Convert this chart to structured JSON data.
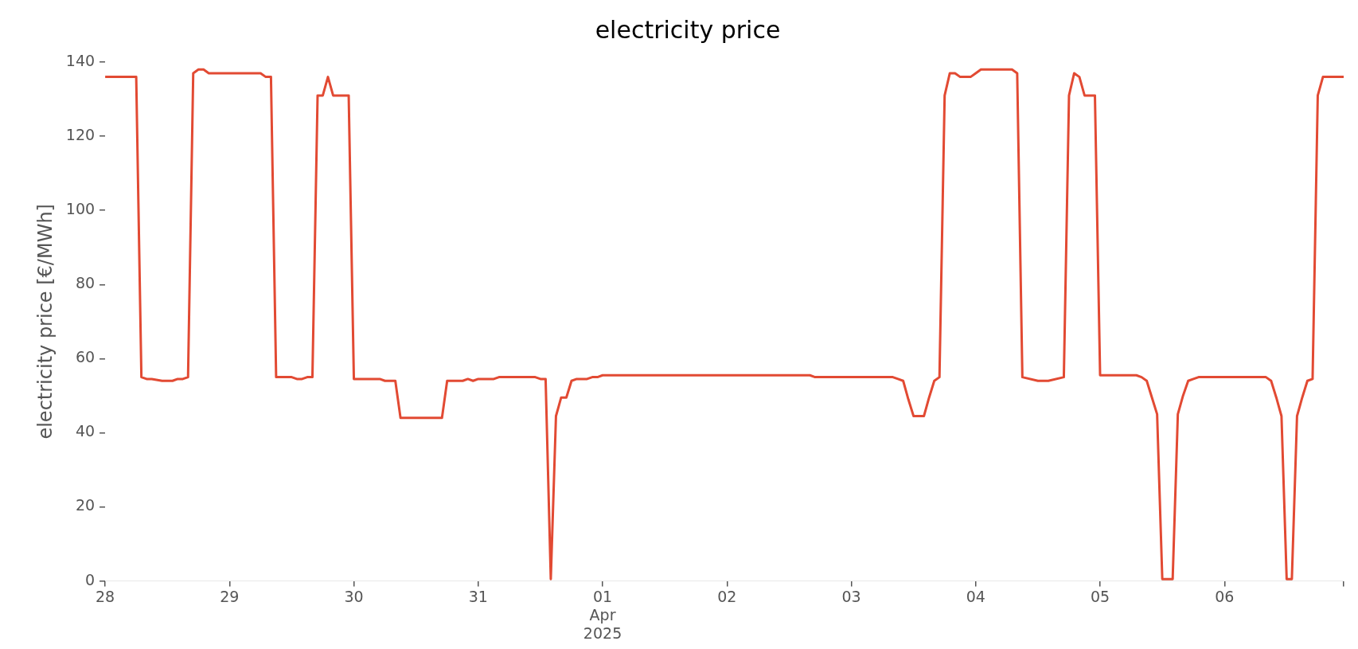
{
  "chart_data": {
    "type": "line",
    "title": "electricity price",
    "ylabel": "electricity price [€/MWh]",
    "xlim": [
      "2025-03-28T00:00",
      "2025-04-06T23:00"
    ],
    "xticks": [
      {
        "value": "2025-03-28",
        "label": "28"
      },
      {
        "value": "2025-03-29",
        "label": "29"
      },
      {
        "value": "2025-03-30",
        "label": "30"
      },
      {
        "value": "2025-03-31",
        "label": "31"
      },
      {
        "value": "2025-04-01",
        "label": "01\nApr\n2025"
      },
      {
        "value": "2025-04-02",
        "label": "02"
      },
      {
        "value": "2025-04-03",
        "label": "03"
      },
      {
        "value": "2025-04-04",
        "label": "04"
      },
      {
        "value": "2025-04-05",
        "label": "05"
      },
      {
        "value": "2025-04-06",
        "label": "06"
      },
      {
        "value": "2025-04-06T23:00",
        "label": null
      }
    ],
    "ylim": [
      0,
      140
    ],
    "yticks": [
      0,
      20,
      40,
      60,
      80,
      100,
      120,
      140
    ],
    "series": [
      {
        "color": "#e24a33",
        "x": [
          "2025-03-28T00:00",
          "2025-03-28T06:00",
          "2025-03-28T07:00",
          "2025-03-28T08:00",
          "2025-03-28T09:00",
          "2025-03-28T11:00",
          "2025-03-28T13:00",
          "2025-03-28T14:00",
          "2025-03-28T15:00",
          "2025-03-28T16:00",
          "2025-03-28T17:00",
          "2025-03-28T18:00",
          "2025-03-28T19:00",
          "2025-03-28T20:00",
          "2025-03-29T06:00",
          "2025-03-29T07:00",
          "2025-03-29T08:00",
          "2025-03-29T09:00",
          "2025-03-29T12:00",
          "2025-03-29T13:00",
          "2025-03-29T14:00",
          "2025-03-29T15:00",
          "2025-03-29T16:00",
          "2025-03-29T17:00",
          "2025-03-29T18:00",
          "2025-03-29T19:00",
          "2025-03-29T20:00",
          "2025-03-29T23:00",
          "2025-03-30T00:00",
          "2025-03-30T05:00",
          "2025-03-30T06:00",
          "2025-03-30T08:00",
          "2025-03-30T09:00",
          "2025-03-30T17:00",
          "2025-03-30T18:00",
          "2025-03-30T21:00",
          "2025-03-30T22:00",
          "2025-03-30T23:00",
          "2025-03-31T00:00",
          "2025-03-31T03:00",
          "2025-03-31T04:00",
          "2025-03-31T11:00",
          "2025-03-31T12:00",
          "2025-03-31T13:00",
          "2025-03-31T14:00",
          "2025-03-31T15:00",
          "2025-03-31T16:00",
          "2025-03-31T17:00",
          "2025-03-31T18:00",
          "2025-03-31T19:00",
          "2025-03-31T21:00",
          "2025-03-31T22:00",
          "2025-03-31T23:00",
          "2025-04-01T00:00",
          "2025-04-02T16:00",
          "2025-04-02T17:00",
          "2025-04-03T08:00",
          "2025-04-03T09:00",
          "2025-04-03T10:00",
          "2025-04-03T11:00",
          "2025-04-03T12:00",
          "2025-04-03T14:00",
          "2025-04-03T15:00",
          "2025-04-03T16:00",
          "2025-04-03T17:00",
          "2025-04-03T18:00",
          "2025-04-03T19:00",
          "2025-04-03T20:00",
          "2025-04-03T21:00",
          "2025-04-03T23:00",
          "2025-04-04T00:00",
          "2025-04-04T01:00",
          "2025-04-04T07:00",
          "2025-04-04T08:00",
          "2025-04-04T09:00",
          "2025-04-04T12:00",
          "2025-04-04T14:00",
          "2025-04-04T17:00",
          "2025-04-04T18:00",
          "2025-04-04T19:00",
          "2025-04-04T20:00",
          "2025-04-04T21:00",
          "2025-04-04T23:00",
          "2025-04-05T00:00",
          "2025-04-05T07:00",
          "2025-04-05T08:00",
          "2025-04-05T09:00",
          "2025-04-05T10:00",
          "2025-04-05T11:00",
          "2025-04-05T12:00",
          "2025-04-05T14:00",
          "2025-04-05T15:00",
          "2025-04-05T16:00",
          "2025-04-05T17:00",
          "2025-04-05T18:00",
          "2025-04-05T19:00",
          "2025-04-06T08:00",
          "2025-04-06T09:00",
          "2025-04-06T10:00",
          "2025-04-06T11:00",
          "2025-04-06T12:00",
          "2025-04-06T13:00",
          "2025-04-06T14:00",
          "2025-04-06T15:00",
          "2025-04-06T16:00",
          "2025-04-06T17:00",
          "2025-04-06T18:00",
          "2025-04-06T19:00",
          "2025-04-06T23:00"
        ],
        "values": [
          136,
          136,
          55,
          54.5,
          54.5,
          54,
          54,
          54.5,
          54.5,
          55,
          137,
          138,
          138,
          137,
          137,
          136,
          136,
          55,
          55,
          54.5,
          54.5,
          55,
          55,
          131,
          131,
          136,
          131,
          131,
          54.5,
          54.5,
          54,
          54,
          44,
          44,
          54,
          54,
          54.5,
          54,
          54.5,
          54.5,
          55,
          55,
          54.5,
          54.5,
          0.5,
          44.5,
          49.5,
          49.5,
          54,
          54.5,
          54.5,
          55,
          55,
          55.5,
          55.5,
          55,
          55,
          54.5,
          54,
          49,
          44.5,
          44.5,
          49.5,
          54,
          55,
          131,
          137,
          137,
          136,
          136,
          137,
          138,
          138,
          137,
          55,
          54,
          54,
          55,
          131,
          137,
          136,
          131,
          131,
          55.5,
          55.5,
          55,
          54,
          49.5,
          45,
          0.5,
          0.5,
          45,
          50,
          54,
          54.5,
          55,
          55,
          54,
          49.5,
          44.5,
          0.5,
          0.5,
          44.5,
          49.5,
          54,
          54.5,
          131,
          136,
          136
        ]
      }
    ]
  }
}
